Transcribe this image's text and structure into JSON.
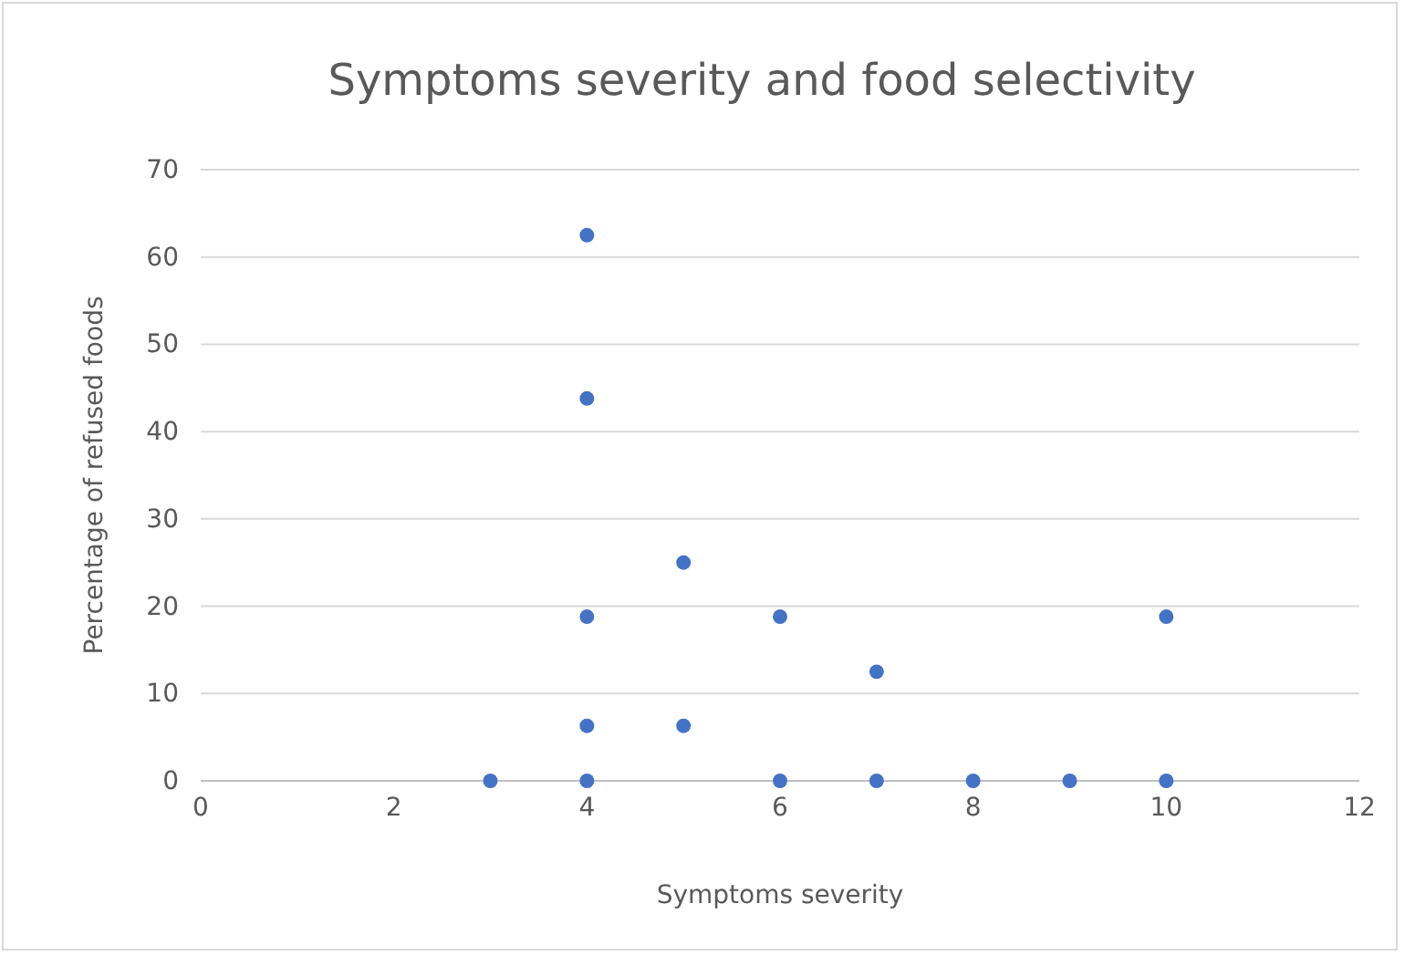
{
  "chart_data": {
    "type": "scatter",
    "title": "Symptoms severity and food selectivity",
    "xlabel": "Symptoms severity",
    "ylabel": "Percentage of refused foods",
    "series": [
      {
        "color": "#4472c4",
        "x": [
          4,
          4,
          4,
          4,
          4,
          5,
          5,
          6,
          6,
          7,
          7,
          3,
          8,
          9,
          10,
          10
        ],
        "values": [
          62.5,
          43.8,
          18.8,
          6.3,
          0,
          25,
          6.3,
          18.8,
          0,
          12.5,
          0,
          0,
          0,
          0,
          18.8,
          0
        ]
      }
    ],
    "xlim": [
      0,
      12
    ],
    "xticks": [
      0,
      2,
      4,
      6,
      8,
      10,
      12
    ],
    "ylim": [
      0,
      70
    ],
    "yticks": [
      0,
      10,
      20,
      30,
      40,
      50,
      60,
      70
    ],
    "grid": "y",
    "marker": "circle"
  }
}
